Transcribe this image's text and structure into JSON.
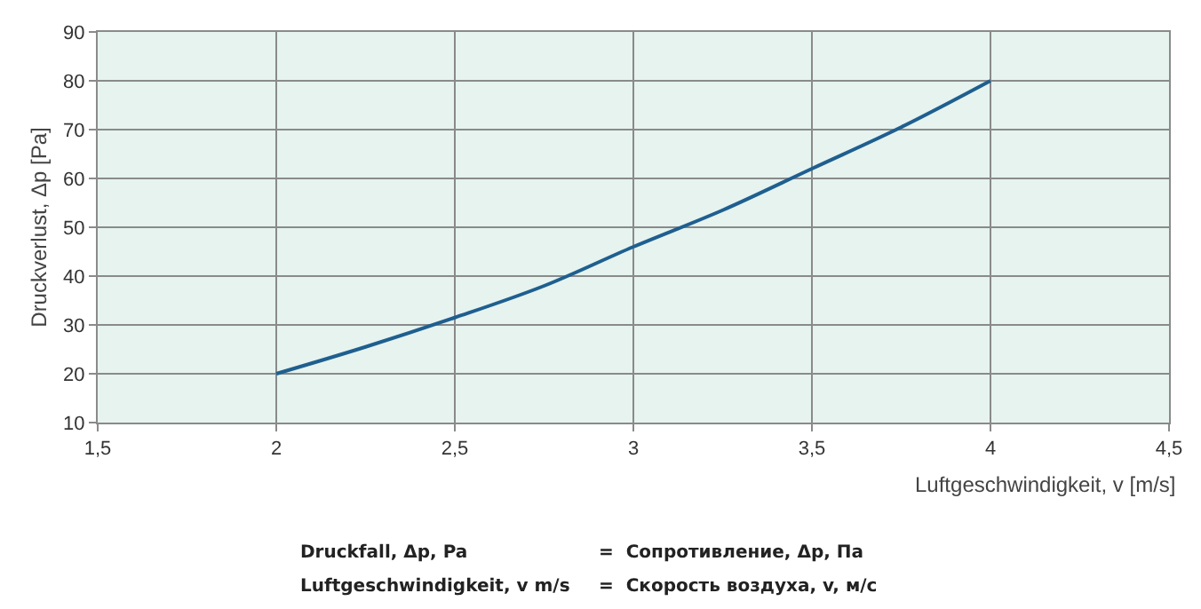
{
  "chart_data": {
    "type": "line",
    "xlabel": "Luftgeschwindigkeit, v [m/s]",
    "ylabel": "Druckverlust, Δp [Pa]",
    "x": [
      2,
      2.25,
      2.5,
      2.75,
      3,
      3.25,
      3.5,
      3.75,
      4
    ],
    "series": [
      {
        "color": "#1f5f8f",
        "values": [
          20,
          25.5,
          31.5,
          38,
          46,
          53.5,
          62,
          70.5,
          80
        ]
      }
    ],
    "xlim": [
      1.5,
      4.5
    ],
    "xticks": [
      {
        "value": 1.5,
        "label": "1,5"
      },
      2,
      {
        "value": 2.5,
        "label": "2,5"
      },
      3,
      {
        "value": 3.5,
        "label": "3,5"
      },
      4,
      {
        "value": 4.5,
        "label": "4,5"
      }
    ],
    "ylim": [
      10,
      90
    ],
    "yticks": [
      10,
      20,
      30,
      40,
      50,
      60,
      70,
      80,
      90
    ],
    "grid": true,
    "marker": "none",
    "line_style": "solid",
    "annotations": [
      "Druckfall, Δp, Pa",
      "=  Сопротивление, Δp, Па",
      "Luftgeschwindigkeit, v m/s",
      "=  Скорость воздуха, v, м/с"
    ]
  }
}
